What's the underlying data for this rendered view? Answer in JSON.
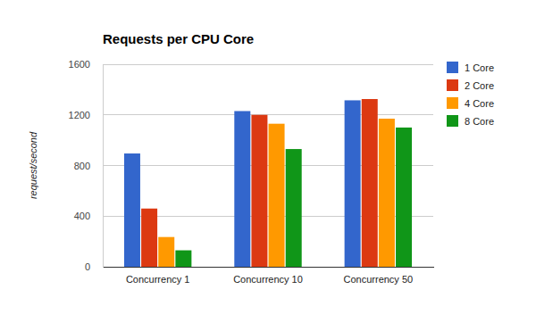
{
  "chart_data": {
    "type": "bar",
    "title": "Requests per CPU Core",
    "y_label": "request/second",
    "categories": [
      "Concurrency 1",
      "Concurrency 10",
      "Concurrency 50"
    ],
    "series": [
      {
        "name": "1 Core",
        "color": "#3366cc",
        "values": [
          895,
          1230,
          1315
        ]
      },
      {
        "name": "2 Core",
        "color": "#dc3912",
        "values": [
          460,
          1200,
          1325
        ]
      },
      {
        "name": "4 Core",
        "color": "#ff9900",
        "values": [
          235,
          1130,
          1170
        ]
      },
      {
        "name": "8 Core",
        "color": "#109618",
        "values": [
          130,
          930,
          1100
        ]
      }
    ],
    "ylim": [
      0,
      1600
    ],
    "yticks": [
      0,
      400,
      800,
      1200,
      1600
    ],
    "grid": true,
    "legend": "right"
  }
}
